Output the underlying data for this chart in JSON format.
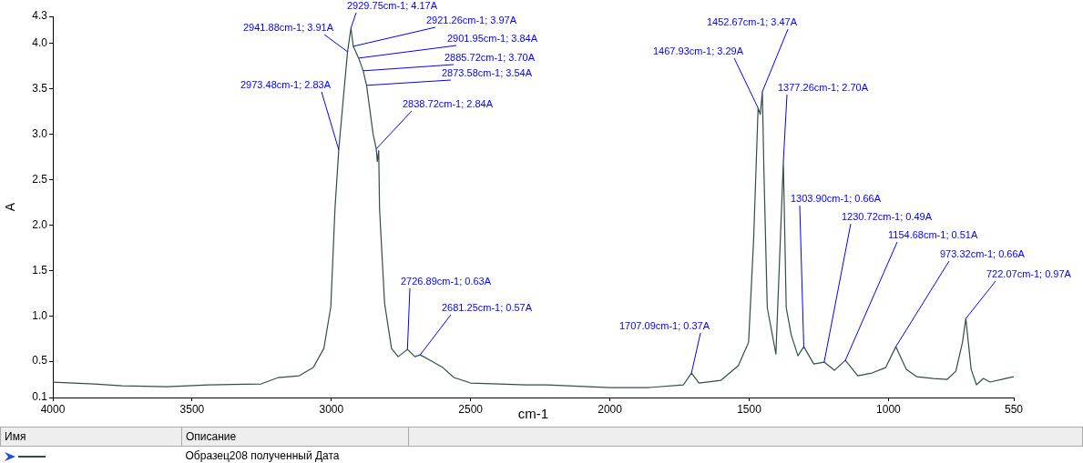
{
  "chart_data": {
    "type": "line",
    "xlabel": "cm-1",
    "ylabel": "A",
    "xlim": [
      4000,
      550
    ],
    "xticks": [
      4000,
      3500,
      3000,
      2500,
      2000,
      1500,
      1000,
      550
    ],
    "ylim": [
      0.1,
      4.3
    ],
    "yticks": [
      0.1,
      0.5,
      {
        "value": 1,
        "label": "1.0"
      },
      1.5,
      {
        "value": 2,
        "label": "2.0"
      },
      2.5,
      {
        "value": 3,
        "label": "3.0"
      },
      3.5,
      {
        "value": 4,
        "label": "4.0"
      },
      4.3
    ],
    "grid": false,
    "legend": false,
    "marker": "none",
    "line_style": "solid",
    "series": [
      {
        "color": "#2f4f4a",
        "x": [
          4000,
          3852,
          3752,
          3590,
          3440,
          3252,
          3190,
          3115,
          3065,
          3027,
          3002,
          2987,
          2973.48,
          2959,
          2941.88,
          2929.75,
          2921.26,
          2901.95,
          2885.72,
          2873.58,
          2850,
          2838.72,
          2835,
          2830,
          2827,
          2809,
          2784,
          2760,
          2726.89,
          2700,
          2681.25,
          2640,
          2600,
          2560,
          2500,
          2400,
          2300,
          2227,
          2000,
          1858,
          1736,
          1707.09,
          1680,
          1601,
          1539,
          1502,
          1484,
          1467.93,
          1460,
          1452.67,
          1447,
          1435,
          1404,
          1377.26,
          1367,
          1349,
          1325,
          1303.9,
          1268,
          1230.72,
          1194,
          1154.68,
          1110,
          1059,
          1010,
          973.32,
          936,
          899,
          838,
          789,
          758,
          734,
          722.07,
          703,
          684,
          659,
          635,
          580,
          550
        ],
        "values": [
          0.27,
          0.25,
          0.23,
          0.22,
          0.24,
          0.25,
          0.32,
          0.34,
          0.43,
          0.64,
          1.1,
          2.18,
          2.83,
          3.33,
          3.91,
          4.17,
          3.97,
          3.84,
          3.7,
          3.54,
          3.0,
          2.84,
          2.7,
          2.82,
          2.18,
          1.14,
          0.64,
          0.55,
          0.63,
          0.55,
          0.57,
          0.5,
          0.43,
          0.32,
          0.26,
          0.25,
          0.24,
          0.24,
          0.21,
          0.21,
          0.24,
          0.37,
          0.26,
          0.29,
          0.45,
          0.71,
          1.84,
          3.29,
          3.22,
          3.47,
          2.59,
          1.09,
          0.58,
          2.7,
          1.09,
          0.79,
          0.56,
          0.66,
          0.47,
          0.49,
          0.4,
          0.51,
          0.34,
          0.37,
          0.43,
          0.66,
          0.41,
          0.33,
          0.31,
          0.3,
          0.39,
          0.71,
          0.97,
          0.41,
          0.24,
          0.31,
          0.27,
          0.31,
          0.33
        ]
      }
    ],
    "annotations": [
      {
        "text": "2973.48cm-1; 2.83A",
        "x": 2973.48,
        "y": 2.83
      },
      {
        "text": "2941.88cm-1; 3.91A",
        "x": 2941.88,
        "y": 3.91
      },
      {
        "text": "2929.75cm-1; 4.17A",
        "x": 2929.75,
        "y": 4.17
      },
      {
        "text": "2921.26cm-1; 3.97A",
        "x": 2921.26,
        "y": 3.97
      },
      {
        "text": "2901.95cm-1; 3.84A",
        "x": 2901.95,
        "y": 3.84
      },
      {
        "text": "2885.72cm-1; 3.70A",
        "x": 2885.72,
        "y": 3.7
      },
      {
        "text": "2873.58cm-1; 3.54A",
        "x": 2873.58,
        "y": 3.54
      },
      {
        "text": "2838.72cm-1; 2.84A",
        "x": 2838.72,
        "y": 2.84
      },
      {
        "text": "2726.89cm-1; 0.63A",
        "x": 2726.89,
        "y": 0.63
      },
      {
        "text": "2681.25cm-1; 0.57A",
        "x": 2681.25,
        "y": 0.57
      },
      {
        "text": "1707.09cm-1; 0.37A",
        "x": 1707.09,
        "y": 0.37
      },
      {
        "text": "1467.93cm-1; 3.29A",
        "x": 1467.93,
        "y": 3.29
      },
      {
        "text": "1452.67cm-1; 3.47A",
        "x": 1452.67,
        "y": 3.47
      },
      {
        "text": "1377.26cm-1; 2.70A",
        "x": 1377.26,
        "y": 2.7
      },
      {
        "text": "1303.90cm-1; 0.66A",
        "x": 1303.9,
        "y": 0.66
      },
      {
        "text": "1230.72cm-1; 0.49A",
        "x": 1230.72,
        "y": 0.49
      },
      {
        "text": "1154.68cm-1; 0.51A",
        "x": 1154.68,
        "y": 0.51
      },
      {
        "text": "973.32cm-1; 0.66A",
        "x": 973.32,
        "y": 0.66
      },
      {
        "text": "722.07cm-1; 0.97A",
        "x": 722.07,
        "y": 0.97
      },
      "Имя",
      "Описание",
      "Образец208 полученный Дата"
    ]
  }
}
